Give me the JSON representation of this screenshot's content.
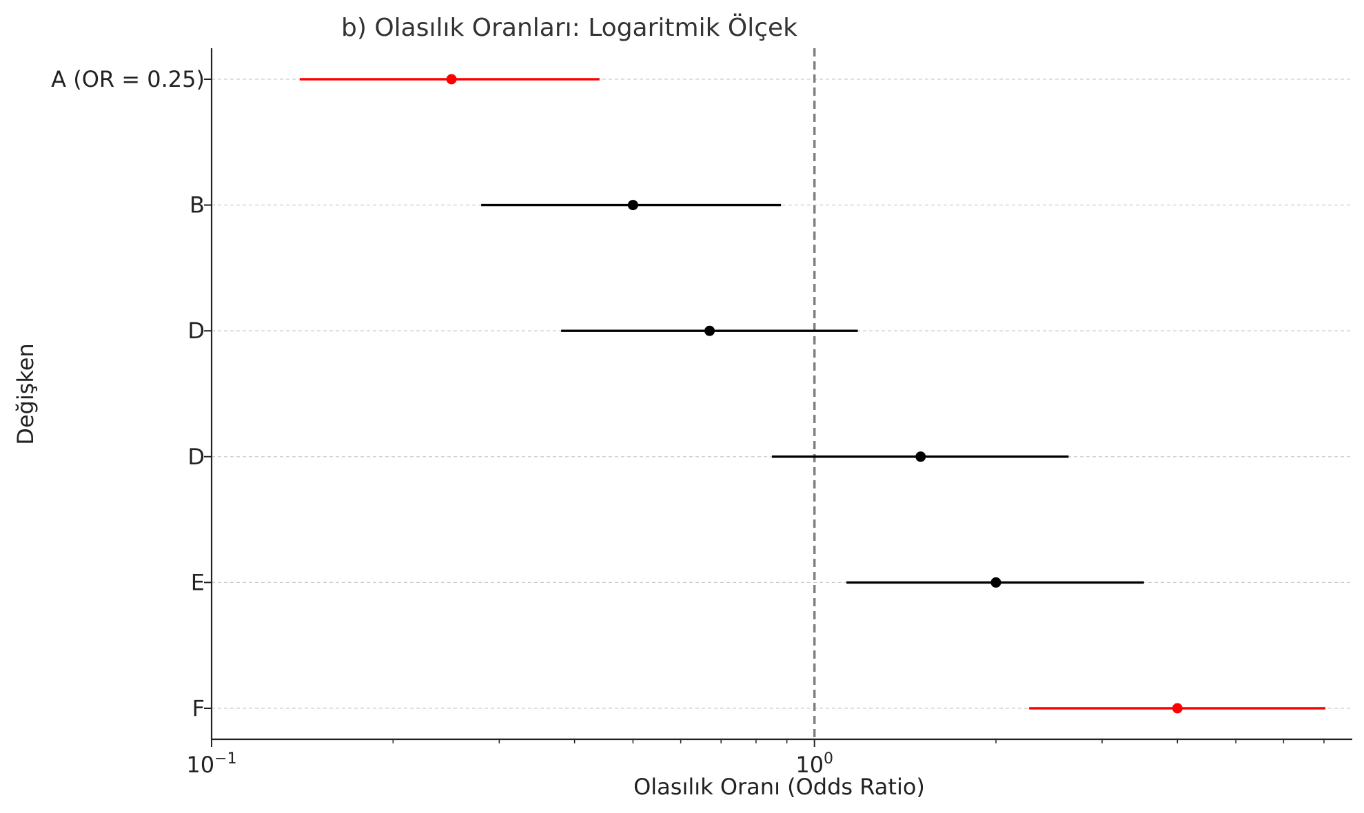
{
  "chart_data": {
    "type": "forest",
    "title": "b) Olasılık Oranları: Logaritmik Ölçek",
    "xlabel": "Olasılık Oranı (Odds Ratio)",
    "ylabel": "Değişken",
    "x_scale": "log",
    "xlim": [
      0.1,
      7.8
    ],
    "x_ticks": [
      {
        "value": 0.1,
        "base": "10",
        "exponent": "−1"
      },
      {
        "value": 1,
        "base": "10",
        "exponent": "0"
      }
    ],
    "reference_line": {
      "x": 1,
      "style": "dashed",
      "color": "#808080"
    },
    "grid": {
      "y": true,
      "style": "dashed",
      "color": "#cccccc"
    },
    "rows": [
      {
        "label": "A (OR = 0.25)",
        "or": 0.25,
        "ci_low": 0.14,
        "ci_high": 0.44,
        "color": "#ff0000"
      },
      {
        "label": "B",
        "or": 0.5,
        "ci_low": 0.28,
        "ci_high": 0.88,
        "color": "#000000"
      },
      {
        "label": "D",
        "or": 0.67,
        "ci_low": 0.38,
        "ci_high": 1.18,
        "color": "#000000"
      },
      {
        "label": "D",
        "or": 1.5,
        "ci_low": 0.85,
        "ci_high": 2.64,
        "color": "#000000"
      },
      {
        "label": "E",
        "or": 2.0,
        "ci_low": 1.13,
        "ci_high": 3.52,
        "color": "#000000"
      },
      {
        "label": "F",
        "or": 4.0,
        "ci_low": 2.27,
        "ci_high": 7.04,
        "color": "#ff0000"
      }
    ]
  }
}
